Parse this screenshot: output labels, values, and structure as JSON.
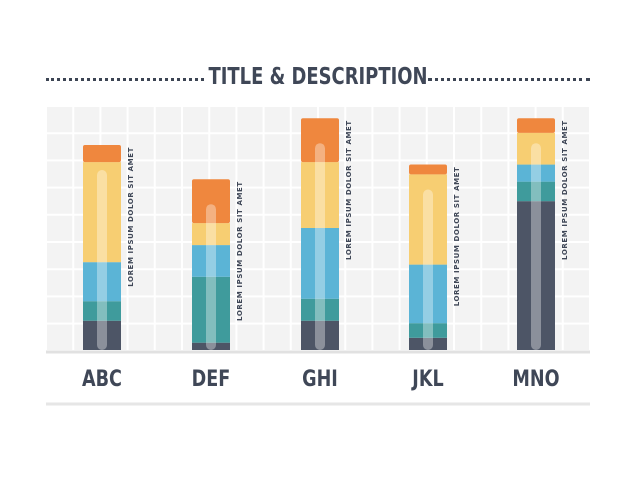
{
  "title": "TITLE & DESCRIPTION",
  "chart_data": {
    "type": "bar",
    "stacked": true,
    "title": "TITLE & DESCRIPTION",
    "categories": [
      "ABC",
      "DEF",
      "GHI",
      "JKL",
      "MNO"
    ],
    "ylim": [
      0,
      100
    ],
    "grid": true,
    "legend": "none",
    "series": [
      {
        "color": "#4d5566",
        "values": [
          12,
          3,
          12,
          5,
          61
        ]
      },
      {
        "color": "#3f9b9c",
        "values": [
          8,
          27,
          9,
          6,
          8
        ]
      },
      {
        "color": "#5bb4d6",
        "values": [
          16,
          13,
          29,
          24,
          7
        ]
      },
      {
        "color": "#f7ce72",
        "values": [
          41,
          9,
          27,
          37,
          13
        ]
      },
      {
        "color": "#ef873e",
        "values": [
          7,
          18,
          18,
          4,
          6
        ]
      }
    ],
    "annotations": [
      "LOREM IPSUM DOLOR SIT AMET",
      "LOREM IPSUM DOLOR SIT AMET",
      "LOREM IPSUM DOLOR SIT AMET",
      "LOREM IPSUM DOLOR SIT AMET",
      "LOREM IPSUM DOLOR SIT AMET"
    ]
  }
}
